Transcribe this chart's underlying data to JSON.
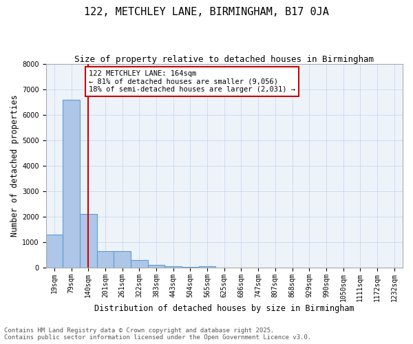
{
  "title": "122, METCHLEY LANE, BIRMINGHAM, B17 0JA",
  "subtitle": "Size of property relative to detached houses in Birmingham",
  "xlabel": "Distribution of detached houses by size in Birmingham",
  "ylabel": "Number of detached properties",
  "categories": [
    "19sqm",
    "79sqm",
    "140sqm",
    "201sqm",
    "261sqm",
    "322sqm",
    "383sqm",
    "443sqm",
    "504sqm",
    "565sqm",
    "625sqm",
    "686sqm",
    "747sqm",
    "807sqm",
    "868sqm",
    "929sqm",
    "990sqm",
    "1050sqm",
    "1111sqm",
    "1172sqm",
    "1232sqm"
  ],
  "values": [
    1300,
    6600,
    2100,
    650,
    650,
    290,
    120,
    60,
    30,
    50,
    0,
    0,
    0,
    0,
    0,
    0,
    0,
    0,
    0,
    0,
    0
  ],
  "bar_color": "#aec6e8",
  "bar_edge_color": "#5b9bd5",
  "grid_color": "#c8d8ee",
  "bg_color": "#eef3fa",
  "vline_x": 2,
  "vline_color": "#cc0000",
  "annotation_text": "122 METCHLEY LANE: 164sqm\n← 81% of detached houses are smaller (9,056)\n18% of semi-detached houses are larger (2,031) →",
  "annotation_box_color": "#cc0000",
  "ylim": [
    0,
    8000
  ],
  "yticks": [
    0,
    1000,
    2000,
    3000,
    4000,
    5000,
    6000,
    7000,
    8000
  ],
  "footer_line1": "Contains HM Land Registry data © Crown copyright and database right 2025.",
  "footer_line2": "Contains public sector information licensed under the Open Government Licence v3.0.",
  "title_fontsize": 11,
  "subtitle_fontsize": 9,
  "axis_label_fontsize": 8.5,
  "tick_fontsize": 7,
  "annotation_fontsize": 7.5,
  "footer_fontsize": 6.5
}
